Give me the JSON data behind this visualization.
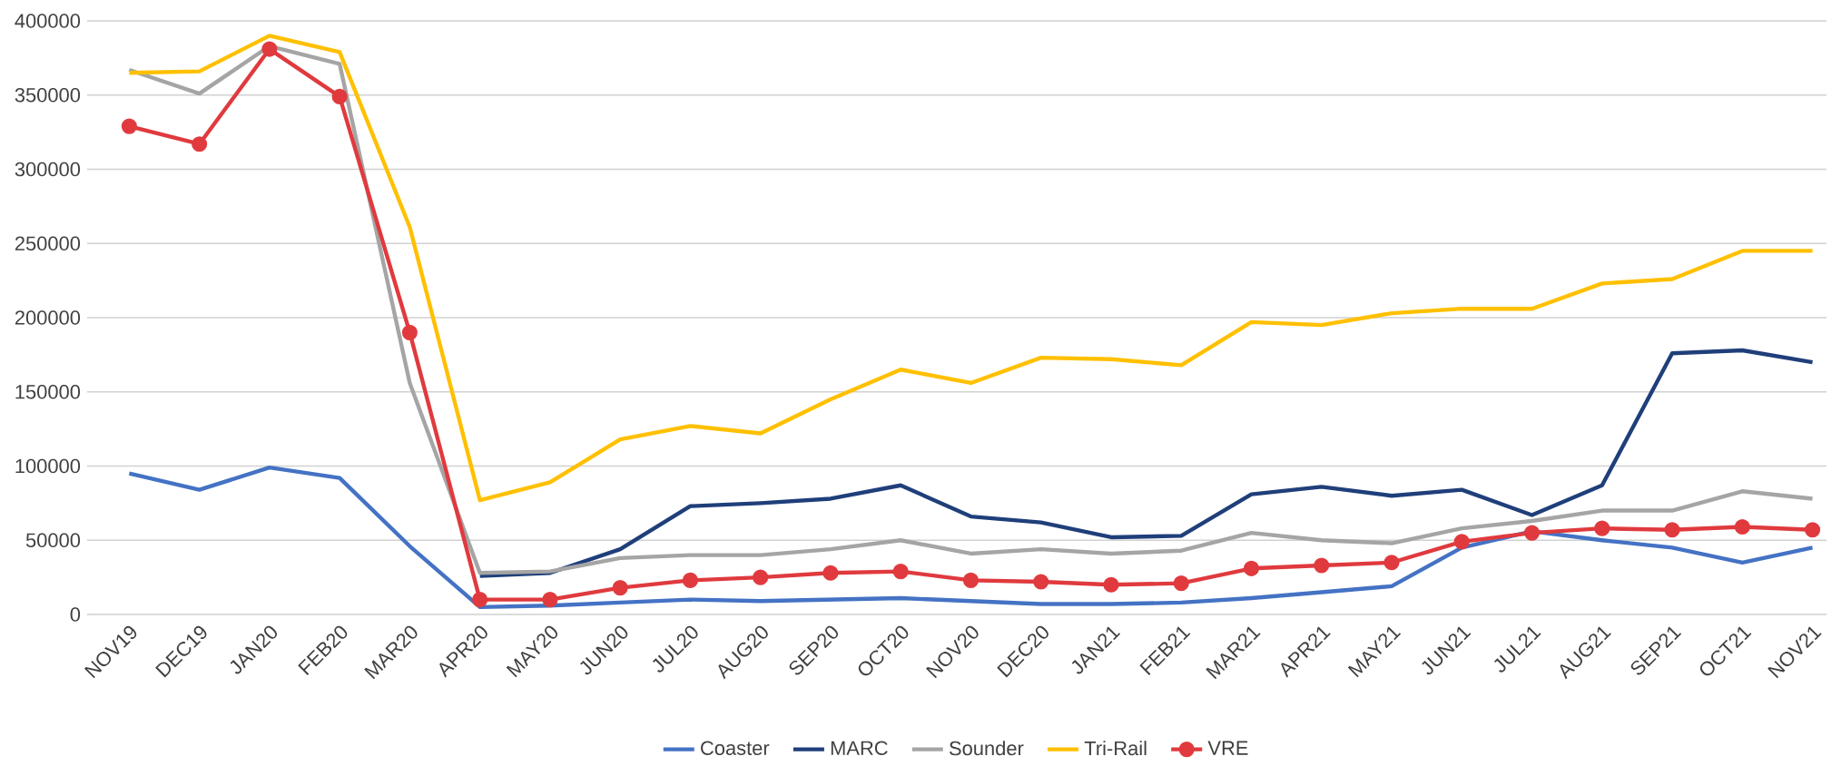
{
  "chart_data": {
    "type": "line",
    "categories": [
      "NOV19",
      "DEC19",
      "JAN20",
      "FEB20",
      "MAR20",
      "APR20",
      "MAY20",
      "JUN20",
      "JUL20",
      "AUG20",
      "SEP20",
      "OCT20",
      "NOV20",
      "DEC20",
      "JAN21",
      "FEB21",
      "MAR21",
      "APR21",
      "MAY21",
      "JUN21",
      "JUL21",
      "AUG21",
      "SEP21",
      "OCT21",
      "NOV21"
    ],
    "series": [
      {
        "name": "Coaster",
        "color": "#4472c4",
        "marker": "none",
        "values": [
          95000,
          84000,
          99000,
          92000,
          46000,
          5000,
          6000,
          8000,
          10000,
          9000,
          10000,
          11000,
          9000,
          7000,
          7000,
          8000,
          11000,
          15000,
          19000,
          45000,
          56000,
          50000,
          45000,
          35000,
          45000
        ]
      },
      {
        "name": "MARC",
        "color": "#1f3f7a",
        "marker": "none",
        "values": [
          null,
          null,
          null,
          null,
          null,
          26000,
          28000,
          44000,
          73000,
          75000,
          78000,
          87000,
          66000,
          62000,
          52000,
          53000,
          81000,
          86000,
          80000,
          84000,
          67000,
          87000,
          176000,
          178000,
          170000
        ]
      },
      {
        "name": "Sounder",
        "color": "#a5a5a5",
        "marker": "none",
        "values": [
          367000,
          351000,
          383000,
          371000,
          156000,
          28000,
          29000,
          38000,
          40000,
          40000,
          44000,
          50000,
          41000,
          44000,
          41000,
          43000,
          55000,
          50000,
          48000,
          58000,
          63000,
          70000,
          70000,
          83000,
          78000
        ]
      },
      {
        "name": "Tri-Rail",
        "color": "#ffc000",
        "marker": "none",
        "values": [
          365000,
          366000,
          390000,
          379000,
          261000,
          77000,
          89000,
          118000,
          127000,
          122000,
          145000,
          165000,
          156000,
          173000,
          172000,
          168000,
          197000,
          195000,
          203000,
          206000,
          206000,
          223000,
          226000,
          245000,
          245000
        ]
      },
      {
        "name": "VRE",
        "color": "#e03a3e",
        "marker": "circle",
        "values": [
          329000,
          317000,
          381000,
          349000,
          190000,
          10000,
          10000,
          18000,
          23000,
          25000,
          28000,
          29000,
          23000,
          22000,
          20000,
          21000,
          31000,
          33000,
          35000,
          49000,
          55000,
          58000,
          57000,
          59000,
          57000
        ]
      }
    ],
    "ylim": [
      0,
      400000
    ],
    "yticks": [
      0,
      50000,
      100000,
      150000,
      200000,
      250000,
      300000,
      350000,
      400000
    ],
    "grid": "y",
    "legend": "bottom",
    "line_style": "solid"
  }
}
